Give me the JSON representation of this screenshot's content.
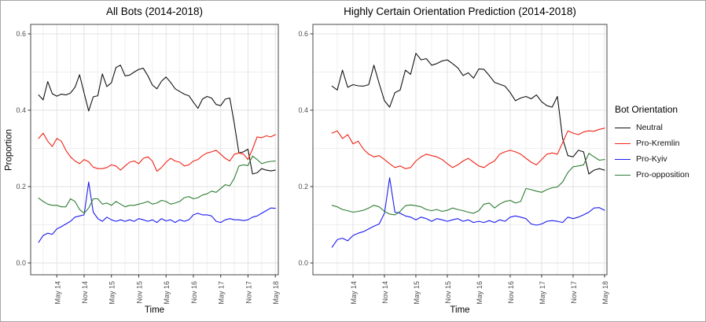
{
  "figure": {
    "legend": {
      "title": "Bot Orientation",
      "entries": [
        {
          "label": "Neutral",
          "color": "#141414"
        },
        {
          "label": "Pro-Kremlin",
          "color": "#f02418"
        },
        {
          "label": "Pro-Kyiv",
          "color": "#1c1cf0"
        },
        {
          "label": "Pro-opposition",
          "color": "#2e7d32"
        }
      ]
    },
    "colors": {
      "grid_major": "#e2e2e2",
      "grid_minor": "#efefef",
      "panel_border": "#4a4a4a",
      "tick_label": "#4d4d4d",
      "tick_mark": "#333333"
    }
  },
  "chart_data": [
    {
      "type": "line",
      "title": "All Bots (2014-2018)",
      "xlabel": "Time",
      "ylabel": "Proportion",
      "x_interval": "monthly",
      "x_range": [
        "Jan 2014",
        "May 2018"
      ],
      "x_tick_labels": [
        "May 14",
        "Nov 14",
        "May 15",
        "Nov 15",
        "May 16",
        "Nov 16",
        "May 17",
        "Nov 17",
        "May 18"
      ],
      "x_tick_positions": [
        4,
        10,
        16,
        22,
        28,
        34,
        40,
        46,
        52
      ],
      "x_minor_positions": [
        1,
        7,
        13,
        19,
        25,
        31,
        37,
        43,
        49
      ],
      "y_ticks": [
        "0.0",
        "0.2",
        "0.4",
        "0.6"
      ],
      "y_tick_values": [
        0.0,
        0.2,
        0.4,
        0.6
      ],
      "y_minor_values": [
        0.1,
        0.3,
        0.5
      ],
      "ylim": [
        -0.031,
        0.625
      ],
      "grid": true,
      "legend_position": "right-shared",
      "series": [
        {
          "name": "Neutral",
          "color": "#141414",
          "values": [
            0.44,
            0.427,
            0.475,
            0.443,
            0.437,
            0.442,
            0.44,
            0.445,
            0.46,
            0.493,
            0.445,
            0.398,
            0.435,
            0.438,
            0.495,
            0.462,
            0.472,
            0.512,
            0.518,
            0.49,
            0.492,
            0.5,
            0.507,
            0.51,
            0.49,
            0.466,
            0.456,
            0.476,
            0.487,
            0.473,
            0.456,
            0.449,
            0.442,
            0.438,
            0.421,
            0.405,
            0.429,
            0.436,
            0.432,
            0.415,
            0.412,
            0.429,
            0.432,
            0.364,
            0.288,
            0.291,
            0.298,
            0.233,
            0.236,
            0.247,
            0.243,
            0.241,
            0.243
          ]
        },
        {
          "name": "Pro-Kremlin",
          "color": "#f02418",
          "values": [
            0.326,
            0.34,
            0.319,
            0.305,
            0.326,
            0.319,
            0.295,
            0.278,
            0.267,
            0.26,
            0.271,
            0.265,
            0.251,
            0.247,
            0.247,
            0.25,
            0.257,
            0.254,
            0.243,
            0.254,
            0.264,
            0.267,
            0.26,
            0.274,
            0.278,
            0.267,
            0.24,
            0.25,
            0.264,
            0.274,
            0.267,
            0.264,
            0.254,
            0.257,
            0.267,
            0.271,
            0.281,
            0.288,
            0.291,
            0.295,
            0.285,
            0.274,
            0.267,
            0.285,
            0.288,
            0.285,
            0.271,
            0.298,
            0.33,
            0.328,
            0.333,
            0.33,
            0.336
          ]
        },
        {
          "name": "Pro-Kyiv",
          "color": "#1c1cf0",
          "values": [
            0.054,
            0.072,
            0.078,
            0.075,
            0.089,
            0.095,
            0.102,
            0.109,
            0.12,
            0.123,
            0.126,
            0.212,
            0.133,
            0.116,
            0.109,
            0.12,
            0.113,
            0.109,
            0.113,
            0.109,
            0.113,
            0.109,
            0.116,
            0.113,
            0.109,
            0.113,
            0.106,
            0.116,
            0.11,
            0.113,
            0.106,
            0.113,
            0.109,
            0.113,
            0.126,
            0.13,
            0.126,
            0.126,
            0.123,
            0.109,
            0.106,
            0.113,
            0.116,
            0.113,
            0.113,
            0.111,
            0.113,
            0.12,
            0.123,
            0.13,
            0.137,
            0.144,
            0.143
          ]
        },
        {
          "name": "Pro-opposition",
          "color": "#2e7d32",
          "values": [
            0.17,
            0.161,
            0.154,
            0.151,
            0.151,
            0.147,
            0.147,
            0.168,
            0.161,
            0.14,
            0.13,
            0.144,
            0.168,
            0.168,
            0.154,
            0.157,
            0.151,
            0.161,
            0.154,
            0.147,
            0.151,
            0.151,
            0.154,
            0.157,
            0.161,
            0.154,
            0.157,
            0.164,
            0.161,
            0.154,
            0.157,
            0.161,
            0.171,
            0.174,
            0.168,
            0.171,
            0.178,
            0.181,
            0.188,
            0.185,
            0.195,
            0.205,
            0.202,
            0.222,
            0.254,
            0.257,
            0.255,
            0.28,
            0.271,
            0.26,
            0.264,
            0.266,
            0.267
          ]
        }
      ]
    },
    {
      "type": "line",
      "title": "Highly Certain Orientation Prediction (2014-2018)",
      "xlabel": "Time",
      "ylabel": "",
      "x_interval": "monthly",
      "x_range": [
        "Jan 2014",
        "May 2018"
      ],
      "x_tick_labels": [
        "May 14",
        "Nov 14",
        "May 15",
        "Nov 15",
        "May 16",
        "Nov 16",
        "May 17",
        "Nov 17",
        "May 18"
      ],
      "x_tick_positions": [
        4,
        10,
        16,
        22,
        28,
        34,
        40,
        46,
        52
      ],
      "x_minor_positions": [
        1,
        7,
        13,
        19,
        25,
        31,
        37,
        43,
        49
      ],
      "y_ticks": [
        "0.0",
        "0.2",
        "0.4",
        "0.6"
      ],
      "y_tick_values": [
        0.0,
        0.2,
        0.4,
        0.6
      ],
      "y_minor_values": [
        0.1,
        0.3,
        0.5
      ],
      "ylim": [
        -0.031,
        0.625
      ],
      "grid": true,
      "legend_position": "right-shared",
      "series": [
        {
          "name": "Neutral",
          "color": "#141414",
          "values": [
            0.463,
            0.453,
            0.505,
            0.46,
            0.467,
            0.464,
            0.463,
            0.467,
            0.518,
            0.47,
            0.425,
            0.408,
            0.446,
            0.453,
            0.505,
            0.494,
            0.549,
            0.532,
            0.535,
            0.518,
            0.522,
            0.529,
            0.532,
            0.522,
            0.511,
            0.491,
            0.498,
            0.484,
            0.508,
            0.507,
            0.491,
            0.473,
            0.468,
            0.463,
            0.446,
            0.425,
            0.432,
            0.436,
            0.43,
            0.44,
            0.422,
            0.412,
            0.408,
            0.436,
            0.326,
            0.281,
            0.278,
            0.295,
            0.291,
            0.233,
            0.243,
            0.247,
            0.243
          ]
        },
        {
          "name": "Pro-Kremlin",
          "color": "#f02418",
          "values": [
            0.34,
            0.346,
            0.326,
            0.336,
            0.312,
            0.319,
            0.298,
            0.285,
            0.278,
            0.281,
            0.271,
            0.26,
            0.25,
            0.254,
            0.247,
            0.25,
            0.267,
            0.278,
            0.285,
            0.281,
            0.278,
            0.271,
            0.26,
            0.25,
            0.257,
            0.267,
            0.274,
            0.264,
            0.254,
            0.25,
            0.26,
            0.267,
            0.285,
            0.291,
            0.295,
            0.291,
            0.285,
            0.274,
            0.264,
            0.257,
            0.271,
            0.285,
            0.288,
            0.285,
            0.315,
            0.346,
            0.34,
            0.336,
            0.343,
            0.346,
            0.345,
            0.35,
            0.353
          ]
        },
        {
          "name": "Pro-Kyiv",
          "color": "#1c1cf0",
          "values": [
            0.041,
            0.061,
            0.065,
            0.058,
            0.072,
            0.078,
            0.082,
            0.089,
            0.096,
            0.102,
            0.13,
            0.223,
            0.133,
            0.13,
            0.123,
            0.12,
            0.113,
            0.12,
            0.116,
            0.109,
            0.116,
            0.113,
            0.109,
            0.113,
            0.116,
            0.109,
            0.113,
            0.106,
            0.109,
            0.106,
            0.111,
            0.106,
            0.113,
            0.109,
            0.12,
            0.123,
            0.12,
            0.116,
            0.102,
            0.099,
            0.102,
            0.109,
            0.111,
            0.109,
            0.106,
            0.12,
            0.116,
            0.12,
            0.126,
            0.133,
            0.144,
            0.145,
            0.138
          ]
        },
        {
          "name": "Pro-opposition",
          "color": "#2e7d32",
          "values": [
            0.151,
            0.147,
            0.14,
            0.137,
            0.133,
            0.135,
            0.138,
            0.144,
            0.151,
            0.147,
            0.135,
            0.128,
            0.126,
            0.135,
            0.15,
            0.152,
            0.15,
            0.147,
            0.14,
            0.137,
            0.14,
            0.135,
            0.138,
            0.144,
            0.14,
            0.137,
            0.133,
            0.13,
            0.137,
            0.154,
            0.157,
            0.144,
            0.154,
            0.161,
            0.164,
            0.157,
            0.161,
            0.195,
            0.192,
            0.188,
            0.185,
            0.192,
            0.197,
            0.199,
            0.212,
            0.237,
            0.252,
            0.254,
            0.257,
            0.287,
            0.278,
            0.269,
            0.271
          ]
        }
      ]
    }
  ]
}
